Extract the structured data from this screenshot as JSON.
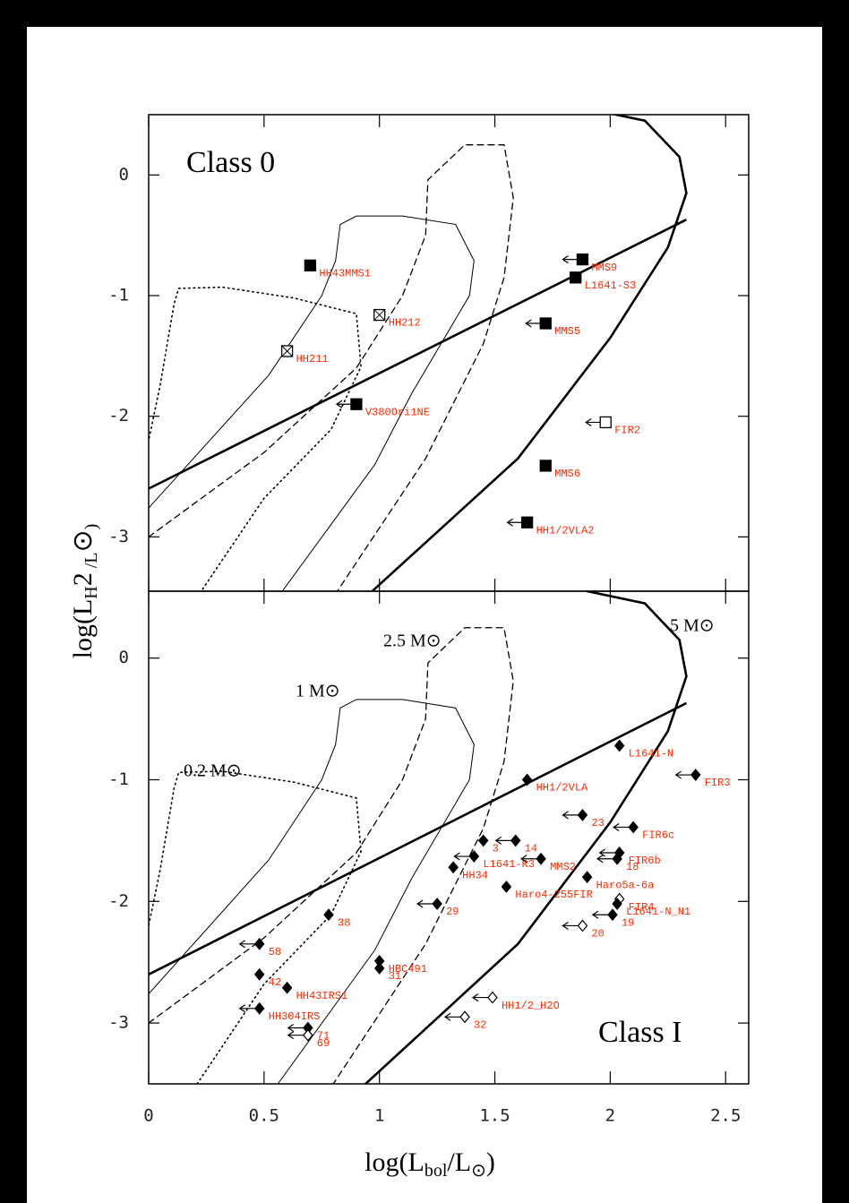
{
  "chart_data": [
    {
      "type": "scatter",
      "title": "Class 0",
      "xlim": [
        0,
        2.6
      ],
      "ylim": [
        -3.45,
        0.5
      ],
      "xticks": [
        0,
        0.5,
        1,
        1.5,
        2,
        2.5
      ],
      "yticks": [
        0,
        -1,
        -2,
        -3
      ],
      "line": {
        "x": [
          0,
          2.33
        ],
        "y": [
          -2.6,
          -0.37
        ]
      },
      "tracks": [
        {
          "style": "dotted",
          "x": [
            0.21,
            0.5,
            0.79,
            0.92,
            0.9,
            0.63,
            0.32,
            0.13,
            0.11,
            0.05,
            0
          ],
          "y": [
            -3.5,
            -2.68,
            -2.11,
            -1.59,
            -1.15,
            -1.02,
            -0.93,
            -0.94,
            -1.07,
            -1.74,
            -2.2
          ]
        },
        {
          "style": "thin",
          "x": [
            0,
            0.52,
            0.75,
            0.81,
            0.83,
            0.9,
            1.1,
            1.33,
            1.41,
            1.39,
            1.14,
            0.98,
            0.56
          ],
          "y": [
            -2.76,
            -1.66,
            -1.0,
            -0.71,
            -0.41,
            -0.34,
            -0.34,
            -0.41,
            -0.71,
            -1.0,
            -1.81,
            -2.4,
            -3.5
          ]
        },
        {
          "style": "dashed",
          "x": [
            0,
            0.5,
            0.9,
            1.1,
            1.2,
            1.21,
            1.37,
            1.54,
            1.58,
            1.54,
            1.45,
            1.2,
            0.8
          ],
          "y": [
            -3.0,
            -2.3,
            -1.6,
            -1.0,
            -0.5,
            -0.04,
            0.25,
            0.25,
            -0.19,
            -0.85,
            -1.4,
            -2.35,
            -3.5
          ]
        },
        {
          "style": "thick",
          "x": [
            0.94,
            1.6,
            2.0,
            2.25,
            2.33,
            2.3,
            2.15,
            1.9
          ],
          "y": [
            -3.5,
            -2.35,
            -1.35,
            -0.6,
            -0.15,
            0.15,
            0.45,
            0.55
          ]
        }
      ],
      "points": [
        {
          "label": "HH43MMS1",
          "x": 0.7,
          "y": -0.75,
          "marker": "filled-square",
          "upper_limit": false
        },
        {
          "label": "MMS9",
          "x": 1.88,
          "y": -0.7,
          "marker": "filled-square",
          "upper_limit": true
        },
        {
          "label": "L1641-S3",
          "x": 1.85,
          "y": -0.85,
          "marker": "filled-square",
          "upper_limit": false
        },
        {
          "label": "HH212",
          "x": 1.0,
          "y": -1.16,
          "marker": "crossed-square",
          "upper_limit": false
        },
        {
          "label": "MMS5",
          "x": 1.72,
          "y": -1.23,
          "marker": "filled-square",
          "upper_limit": true
        },
        {
          "label": "HH211",
          "x": 0.6,
          "y": -1.46,
          "marker": "crossed-square",
          "upper_limit": false
        },
        {
          "label": "V380Ori1NE",
          "x": 0.9,
          "y": -1.9,
          "marker": "filled-square",
          "upper_limit": true
        },
        {
          "label": "FIR2",
          "x": 1.98,
          "y": -2.05,
          "marker": "open-square",
          "upper_limit": true
        },
        {
          "label": "MMS6",
          "x": 1.72,
          "y": -2.41,
          "marker": "filled-square",
          "upper_limit": false
        },
        {
          "label": "HH1/2VLA2",
          "x": 1.64,
          "y": -2.88,
          "marker": "filled-square",
          "upper_limit": true
        }
      ],
      "ylabel": [
        "log(L",
        "H",
        "2",
        " /L",
        "⊙",
        ")"
      ]
    },
    {
      "type": "scatter",
      "title": "Class I",
      "xlim": [
        0,
        2.6
      ],
      "ylim": [
        -3.5,
        0.55
      ],
      "xticks": [
        0,
        0.5,
        1,
        1.5,
        2,
        2.5
      ],
      "yticks": [
        0,
        -1,
        -2,
        -3
      ],
      "line": {
        "x": [
          0,
          2.33
        ],
        "y": [
          -2.6,
          -0.37
        ]
      },
      "tracks": [
        {
          "label": "0.2 M⊙",
          "style": "dotted",
          "x": [
            0.21,
            0.5,
            0.79,
            0.92,
            0.9,
            0.63,
            0.32,
            0.13,
            0.11,
            0.05,
            0
          ],
          "y": [
            -3.5,
            -2.68,
            -2.11,
            -1.59,
            -1.15,
            -1.02,
            -0.93,
            -0.94,
            -1.07,
            -1.74,
            -2.2
          ]
        },
        {
          "label": "1 M⊙",
          "style": "thin",
          "x": [
            0,
            0.52,
            0.75,
            0.81,
            0.83,
            0.9,
            1.1,
            1.33,
            1.41,
            1.39,
            1.14,
            0.98,
            0.56
          ],
          "y": [
            -2.76,
            -1.66,
            -1.0,
            -0.71,
            -0.41,
            -0.34,
            -0.34,
            -0.41,
            -0.71,
            -1.0,
            -1.81,
            -2.4,
            -3.5
          ]
        },
        {
          "label": "2.5 M⊙",
          "style": "dashed",
          "x": [
            0,
            0.5,
            0.9,
            1.1,
            1.2,
            1.21,
            1.37,
            1.54,
            1.58,
            1.54,
            1.45,
            1.2,
            0.8
          ],
          "y": [
            -3.0,
            -2.3,
            -1.6,
            -1.0,
            -0.5,
            -0.04,
            0.25,
            0.25,
            -0.19,
            -0.85,
            -1.4,
            -2.35,
            -3.5
          ]
        },
        {
          "label": "5 M⊙",
          "style": "thick",
          "x": [
            0.94,
            1.6,
            2.0,
            2.25,
            2.33,
            2.3,
            2.15,
            1.9
          ],
          "y": [
            -3.5,
            -2.35,
            -1.35,
            -0.6,
            -0.15,
            0.15,
            0.45,
            0.55
          ]
        }
      ],
      "points": [
        {
          "label": "L1641-N",
          "x": 2.04,
          "y": -0.72,
          "marker": "filled-diamond",
          "upper_limit": false
        },
        {
          "label": "FIR3",
          "x": 2.37,
          "y": -0.96,
          "marker": "filled-diamond",
          "upper_limit": true
        },
        {
          "label": "HH1/2VLA",
          "x": 1.64,
          "y": -1.0,
          "marker": "filled-diamond",
          "upper_limit": false
        },
        {
          "label": "23",
          "x": 1.88,
          "y": -1.29,
          "marker": "filled-diamond",
          "upper_limit": true
        },
        {
          "label": "FIR6c",
          "x": 2.1,
          "y": -1.39,
          "marker": "filled-diamond",
          "upper_limit": true
        },
        {
          "label": "3",
          "x": 1.45,
          "y": -1.5,
          "marker": "filled-diamond",
          "upper_limit": false
        },
        {
          "label": "14",
          "x": 1.59,
          "y": -1.5,
          "marker": "filled-diamond",
          "upper_limit": true
        },
        {
          "label": "FIR6b",
          "x": 2.04,
          "y": -1.6,
          "marker": "filled-diamond",
          "upper_limit": true
        },
        {
          "label": "18",
          "x": 2.03,
          "y": -1.65,
          "marker": "filled-diamond",
          "upper_limit": true
        },
        {
          "label": "L1641-R3",
          "x": 1.41,
          "y": -1.63,
          "marker": "filled-diamond",
          "upper_limit": true
        },
        {
          "label": "MMS2",
          "x": 1.7,
          "y": -1.65,
          "marker": "filled-diamond",
          "upper_limit": true
        },
        {
          "label": "HH34",
          "x": 1.32,
          "y": -1.72,
          "marker": "filled-diamond",
          "upper_limit": false
        },
        {
          "label": "Haro5a-6a",
          "x": 1.9,
          "y": -1.8,
          "marker": "filled-diamond",
          "upper_limit": false
        },
        {
          "label": "Haro4-255FIR",
          "x": 1.55,
          "y": -1.88,
          "marker": "filled-diamond",
          "upper_limit": false
        },
        {
          "label": "29",
          "x": 1.25,
          "y": -2.02,
          "marker": "filled-diamond",
          "upper_limit": true
        },
        {
          "label": "FIR4",
          "x": 2.04,
          "y": -1.98,
          "marker": "open-diamond",
          "upper_limit": false
        },
        {
          "label": "L1641-N_N1",
          "x": 2.03,
          "y": -2.02,
          "marker": "filled-diamond",
          "upper_limit": false
        },
        {
          "label": "19",
          "x": 2.01,
          "y": -2.11,
          "marker": "filled-diamond",
          "upper_limit": true
        },
        {
          "label": "20",
          "x": 1.88,
          "y": -2.2,
          "marker": "open-diamond",
          "upper_limit": true
        },
        {
          "label": "38",
          "x": 0.78,
          "y": -2.11,
          "marker": "filled-diamond",
          "upper_limit": false
        },
        {
          "label": "58",
          "x": 0.48,
          "y": -2.35,
          "marker": "filled-diamond",
          "upper_limit": true
        },
        {
          "label": "42",
          "x": 0.48,
          "y": -2.6,
          "marker": "filled-diamond",
          "upper_limit": false
        },
        {
          "label": "HH43IRS1",
          "x": 0.6,
          "y": -2.71,
          "marker": "filled-diamond",
          "upper_limit": false
        },
        {
          "label": "HBC491",
          "x": 1.0,
          "y": -2.49,
          "marker": "filled-diamond",
          "upper_limit": false
        },
        {
          "label": "31",
          "x": 1.0,
          "y": -2.55,
          "marker": "filled-diamond",
          "upper_limit": false
        },
        {
          "label": "HH1/2_H2O",
          "x": 1.49,
          "y": -2.79,
          "marker": "open-diamond",
          "upper_limit": true
        },
        {
          "label": "HH304IRS",
          "x": 0.48,
          "y": -2.88,
          "marker": "filled-diamond",
          "upper_limit": true
        },
        {
          "label": "71",
          "x": 0.69,
          "y": -3.04,
          "marker": "filled-diamond",
          "upper_limit": true
        },
        {
          "label": "69",
          "x": 0.69,
          "y": -3.1,
          "marker": "open-diamond",
          "upper_limit": true
        },
        {
          "label": "32",
          "x": 1.37,
          "y": -2.95,
          "marker": "open-diamond",
          "upper_limit": true
        }
      ],
      "xlabel": [
        "log(L",
        "bol",
        "/L",
        "⊙",
        ")"
      ]
    }
  ]
}
